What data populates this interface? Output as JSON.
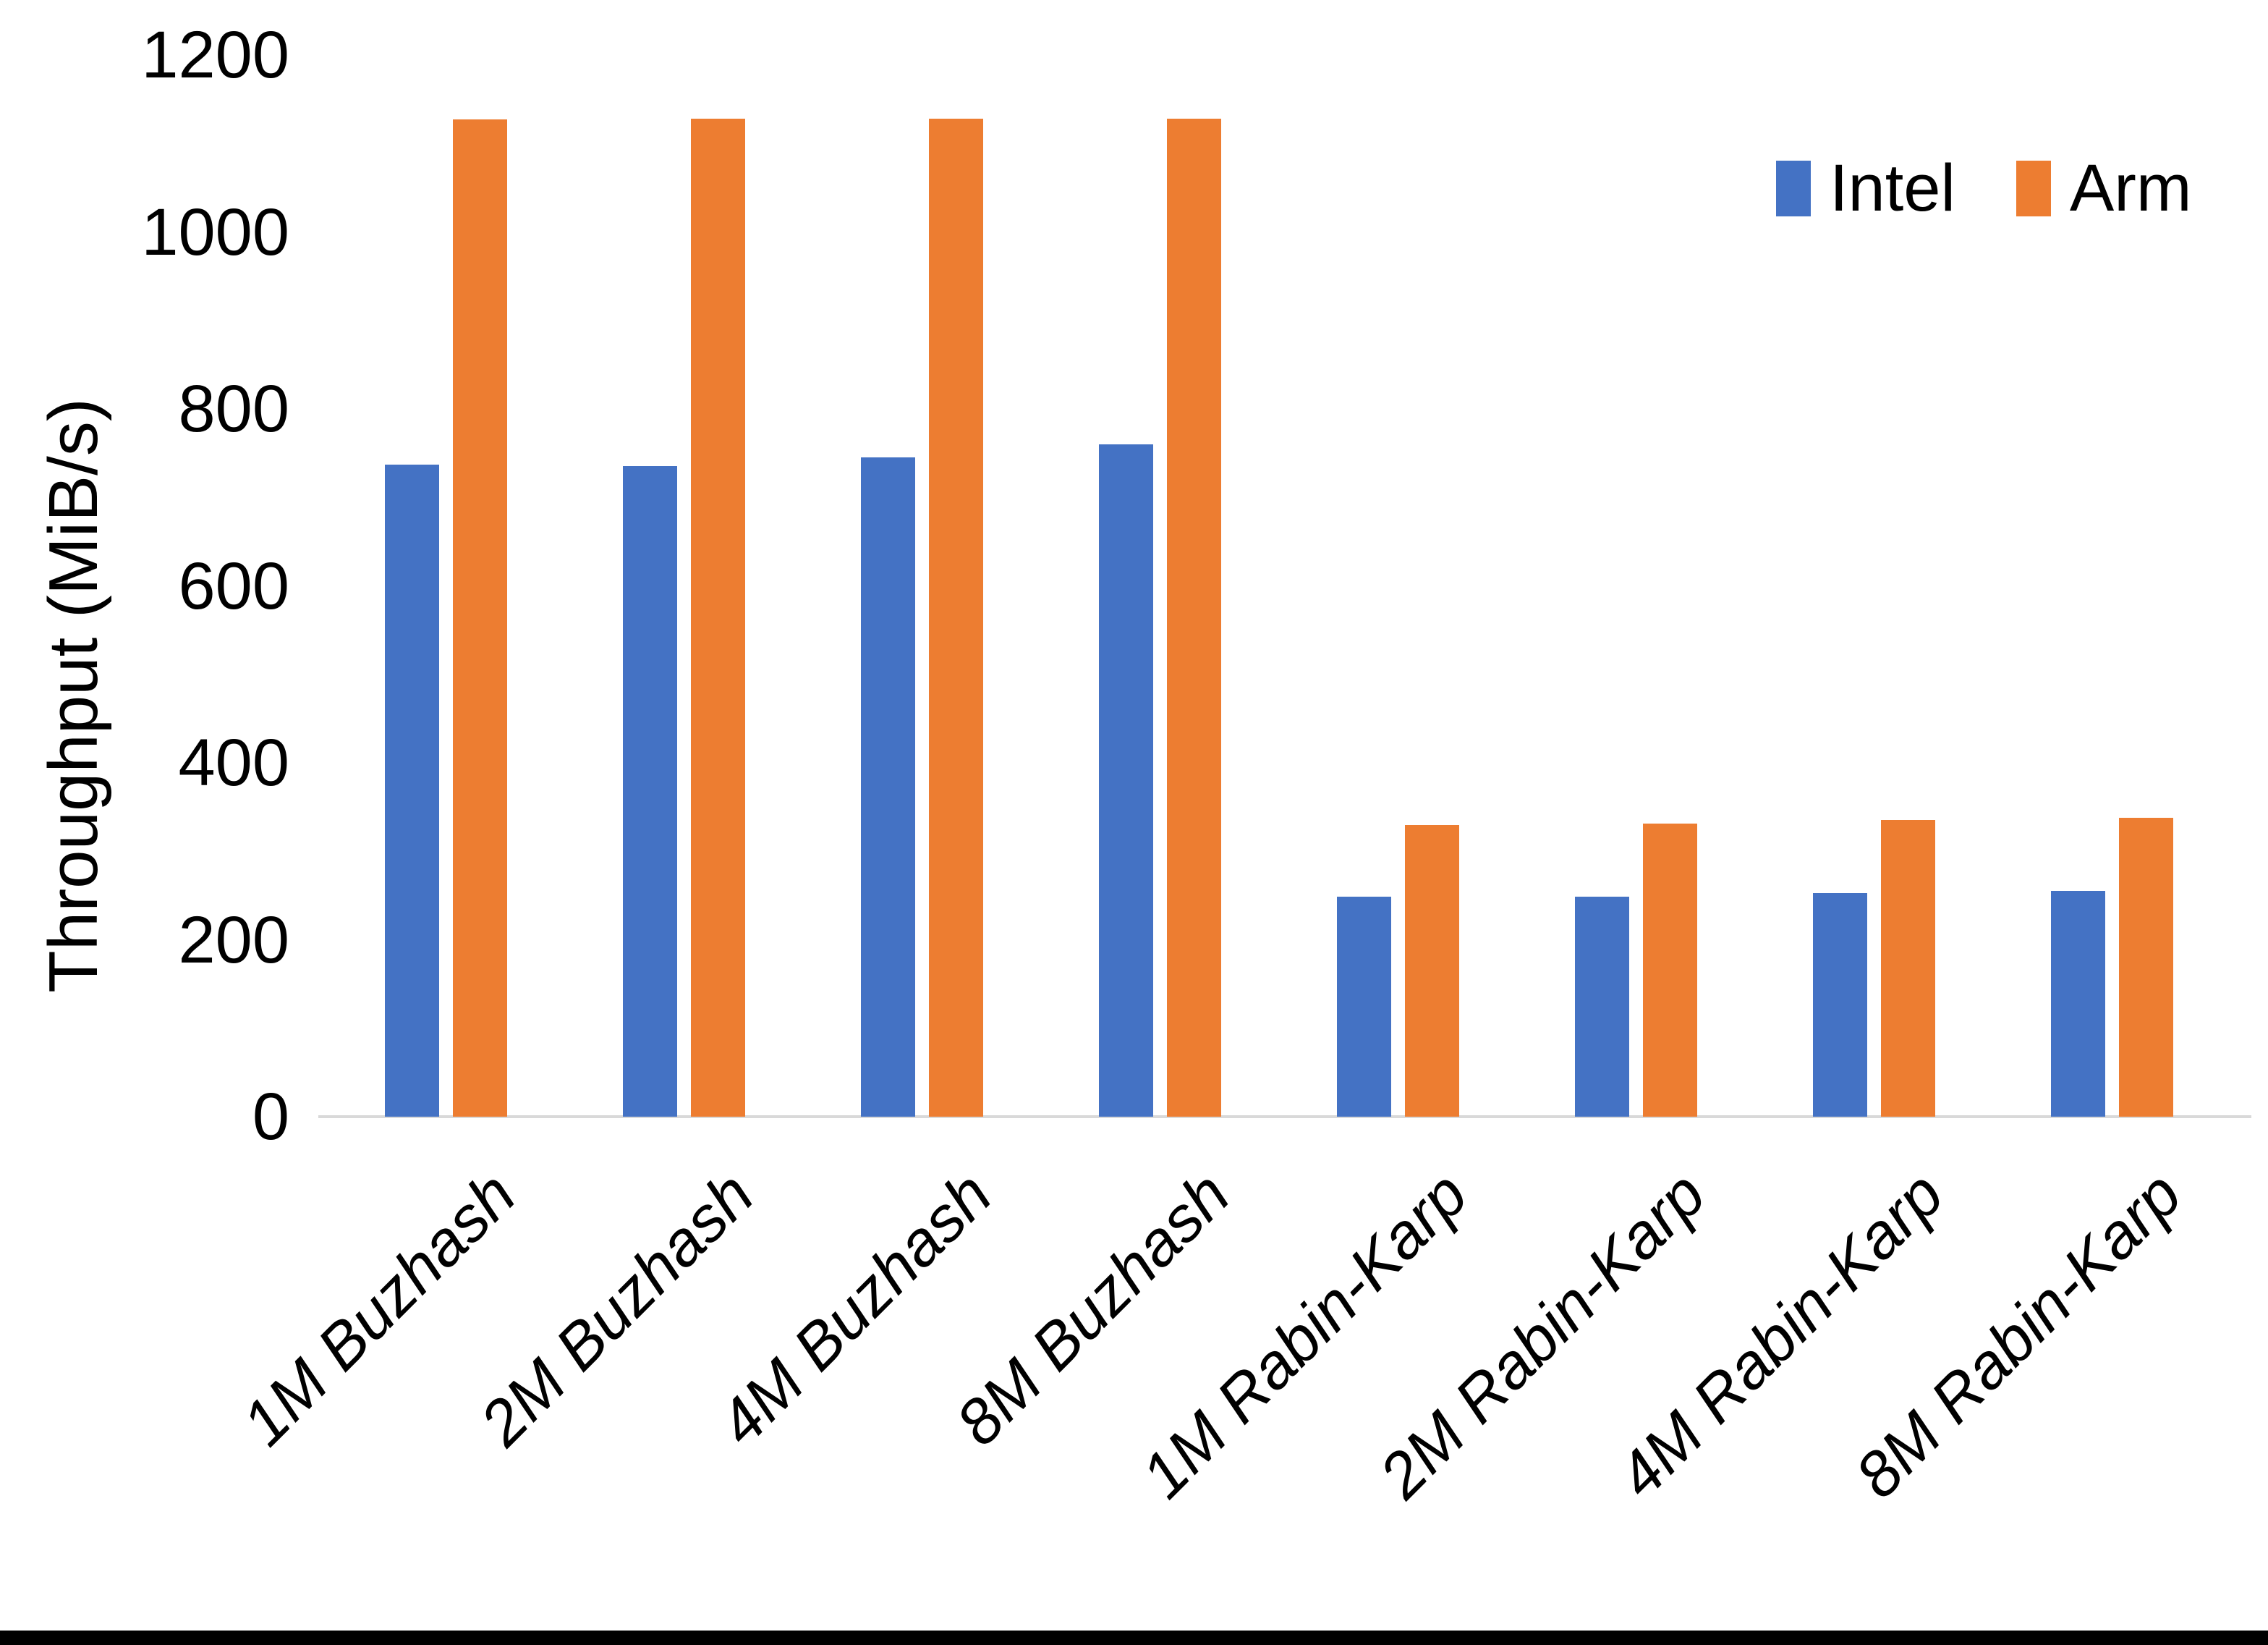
{
  "chart_data": {
    "type": "bar",
    "title": "",
    "xlabel": "",
    "ylabel": "Throughput (MiB/s)",
    "categories": [
      "1M Buzhash",
      "2M Buzhash",
      "4M Buzhash",
      "8M Buzhash",
      "1M Rabin-Karp",
      "2M Rabin-Karp",
      "4M Rabin-Karp",
      "8M Rabin-Karp"
    ],
    "series": [
      {
        "name": "Intel",
        "color": "#4472C4",
        "values": [
          737,
          735,
          745,
          760,
          249,
          249,
          253,
          255
        ]
      },
      {
        "name": "Arm",
        "color": "#ED7D31",
        "values": [
          1127,
          1128,
          1128,
          1128,
          330,
          331,
          335,
          338
        ]
      }
    ],
    "ylim": [
      0,
      1200
    ],
    "yticks": [
      0,
      200,
      400,
      600,
      800,
      1000,
      1200
    ],
    "grid": false,
    "legend_position": "top-right"
  },
  "colors": {
    "axis_line": "#D9D9D9",
    "text": "#000000",
    "background": "#FFFFFF",
    "bottom_bar": "#000000"
  }
}
